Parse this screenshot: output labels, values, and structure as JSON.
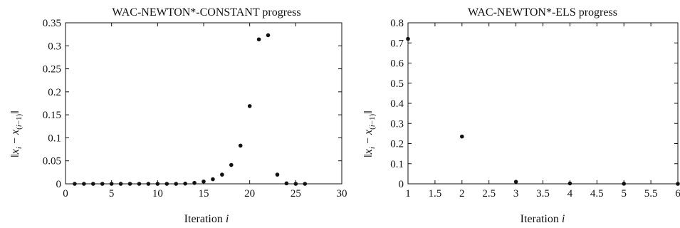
{
  "chart_data": [
    {
      "type": "scatter",
      "title": "WAC-NEWTON*-CONSTANT progress",
      "xlabel": "Iteration i",
      "ylabel": "||x_i − x_(i−1)||",
      "xlim": [
        0,
        30
      ],
      "ylim": [
        0,
        0.35
      ],
      "xticks": [
        0,
        5,
        10,
        15,
        20,
        25,
        30
      ],
      "yticks": [
        0,
        0.05,
        0.1,
        0.15,
        0.2,
        0.25,
        0.3,
        0.35
      ],
      "xtick_labels": [
        "0",
        "5",
        "10",
        "15",
        "20",
        "25",
        "30"
      ],
      "ytick_labels": [
        "0",
        "0.05",
        "0.1",
        "0.15",
        "0.2",
        "0.25",
        "0.3",
        "0.35"
      ],
      "series": [
        {
          "x": [
            1,
            2,
            3,
            4,
            5,
            6,
            7,
            8,
            9,
            10,
            11,
            12,
            13,
            14,
            15,
            16,
            17,
            18,
            19,
            20,
            21,
            22,
            23,
            24,
            25,
            26
          ],
          "y": [
            0,
            0,
            0,
            0,
            0,
            0,
            0,
            0,
            0,
            0,
            0,
            0,
            0.0005,
            0.002,
            0.005,
            0.01,
            0.02,
            0.041,
            0.083,
            0.169,
            0.314,
            0.323,
            0.02,
            0.001,
            0,
            0
          ]
        }
      ]
    },
    {
      "type": "scatter",
      "title": "WAC-NEWTON*-ELS progress",
      "xlabel": "Iteration i",
      "ylabel": "||x_i − x_(i−1)||",
      "xlim": [
        1,
        6
      ],
      "ylim": [
        0,
        0.8
      ],
      "xticks": [
        1,
        1.5,
        2,
        2.5,
        3,
        3.5,
        4,
        4.5,
        5,
        5.5,
        6
      ],
      "yticks": [
        0,
        0.1,
        0.2,
        0.3,
        0.4,
        0.5,
        0.6,
        0.7,
        0.8
      ],
      "xtick_labels": [
        "1",
        "1.5",
        "2",
        "2.5",
        "3",
        "3.5",
        "4",
        "4.5",
        "5",
        "5.5",
        "6"
      ],
      "ytick_labels": [
        "0",
        "0.1",
        "0.2",
        "0.3",
        "0.4",
        "0.5",
        "0.6",
        "0.7",
        "0.8"
      ],
      "series": [
        {
          "x": [
            1,
            2,
            3,
            4,
            5,
            6
          ],
          "y": [
            0.72,
            0.235,
            0.01,
            0.002,
            0.0005,
            0
          ]
        }
      ]
    }
  ]
}
